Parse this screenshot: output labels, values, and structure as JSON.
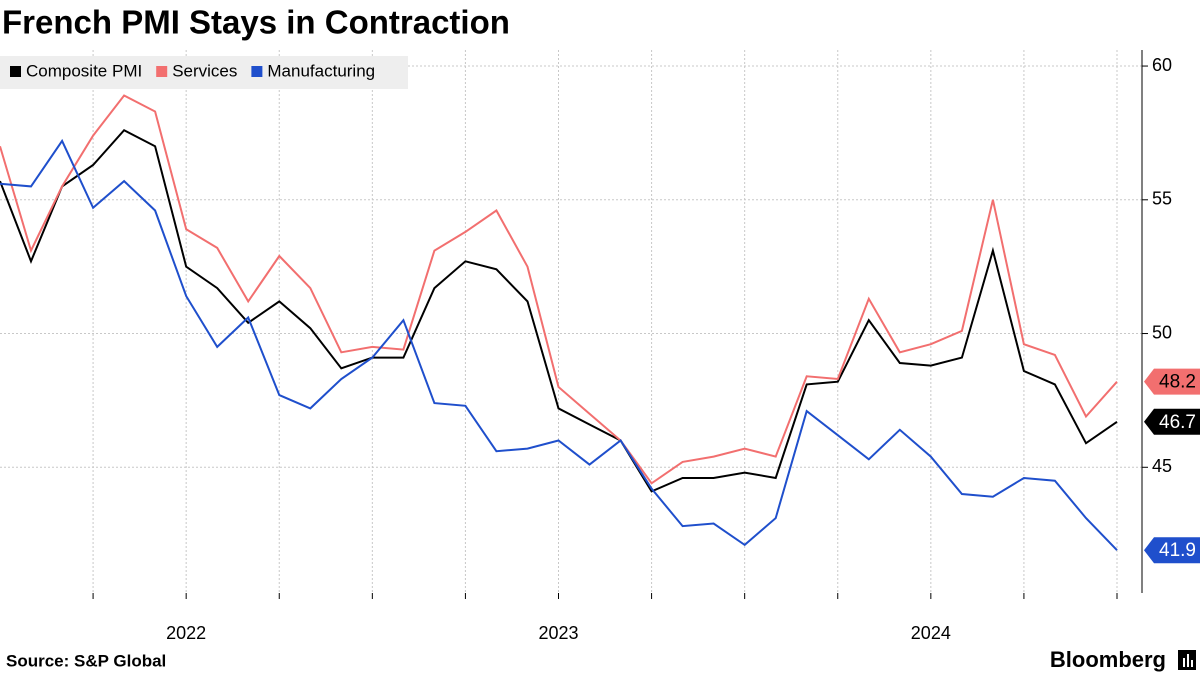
{
  "chart_data": {
    "type": "line",
    "title": "French PMI Stays in Contraction",
    "source": "Source: S&P Global",
    "brand": "Bloomberg",
    "categories": [
      null,
      null,
      null,
      null,
      null,
      null,
      "2022",
      null,
      null,
      null,
      null,
      null,
      null,
      null,
      null,
      null,
      null,
      null,
      "2023",
      null,
      null,
      null,
      null,
      null,
      null,
      null,
      null,
      null,
      null,
      null,
      "2024",
      null,
      null,
      null,
      null,
      null,
      null
    ],
    "series": [
      {
        "name": "Composite PMI",
        "color": "#000000",
        "text_color": "#ffffff",
        "values": [
          55.7,
          52.7,
          55.5,
          56.3,
          57.6,
          57.0,
          52.5,
          51.7,
          50.4,
          51.2,
          50.2,
          48.7,
          49.1,
          49.1,
          51.7,
          52.7,
          52.4,
          51.2,
          47.2,
          46.6,
          46.0,
          44.1,
          44.6,
          44.6,
          44.8,
          44.6,
          48.1,
          48.2,
          50.5,
          48.9,
          48.8,
          49.1,
          53.1,
          48.6,
          48.1,
          45.9,
          46.7
        ]
      },
      {
        "name": "Services",
        "color": "#f26f6f",
        "text_color": "#000000",
        "values": [
          57.0,
          53.1,
          55.5,
          57.4,
          58.9,
          58.3,
          53.9,
          53.2,
          51.2,
          52.9,
          51.7,
          49.3,
          49.5,
          49.4,
          53.1,
          53.8,
          54.6,
          52.5,
          48.0,
          47.0,
          46.0,
          44.4,
          45.2,
          45.4,
          45.7,
          45.4,
          48.4,
          48.3,
          51.3,
          49.3,
          49.6,
          50.1,
          55.0,
          49.6,
          49.2,
          46.9,
          48.2
        ]
      },
      {
        "name": "Manufacturing",
        "color": "#1f4fcc",
        "text_color": "#ffffff",
        "values": [
          55.6,
          55.5,
          57.2,
          54.7,
          55.7,
          54.6,
          51.4,
          49.5,
          50.6,
          47.7,
          47.2,
          48.3,
          49.1,
          50.5,
          47.4,
          47.3,
          45.6,
          45.7,
          46.0,
          45.1,
          46.0,
          44.2,
          42.8,
          42.9,
          42.1,
          43.1,
          47.1,
          46.2,
          45.3,
          46.4,
          45.4,
          44.0,
          43.9,
          44.6,
          44.5,
          43.1,
          41.9
        ]
      }
    ],
    "ylim": [
      40.3,
      60.6
    ],
    "yticks": [
      45,
      50,
      55,
      60
    ],
    "grid": true,
    "legend": "top-left"
  }
}
